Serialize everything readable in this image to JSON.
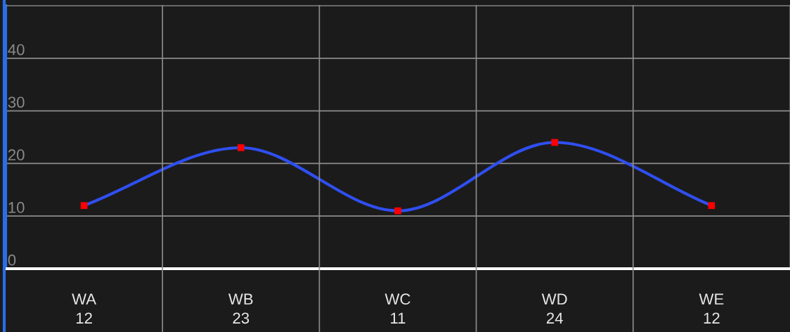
{
  "chart_data": {
    "type": "line",
    "categories": [
      "WA",
      "WB",
      "WC",
      "WD",
      "WE"
    ],
    "series": [
      {
        "color": "#2f4ff0",
        "colors": [
          "#ff0000",
          "#ff0000",
          "#ff0000",
          "#ff0000",
          "#ff0000"
        ],
        "values": [
          12,
          23,
          11,
          24,
          12
        ]
      }
    ],
    "marker": "square",
    "line_style": "solid",
    "grid": true,
    "data_labels": true,
    "ylim": [
      0,
      50
    ],
    "yticks": [
      0,
      10,
      20,
      30,
      40,
      {
        "value": 50,
        "label": null
      }
    ]
  }
}
